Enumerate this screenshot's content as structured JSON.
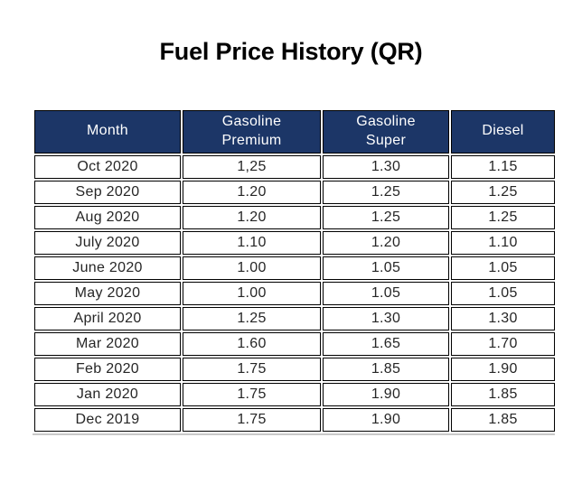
{
  "page": {
    "title": "Fuel Price History (QR)"
  },
  "colors": {
    "header_bg": "#1c3667",
    "header_text": "#ffffff",
    "cell_border": "#000000",
    "cell_text": "#262626",
    "title_text": "#000000",
    "page_bg": "#ffffff"
  },
  "table": {
    "columns": [
      {
        "key": "month",
        "label": "Month"
      },
      {
        "key": "premium",
        "label": "Gasoline\nPremium"
      },
      {
        "key": "super",
        "label": "Gasoline\nSuper"
      },
      {
        "key": "diesel",
        "label": "Diesel"
      }
    ],
    "rows": [
      {
        "month": "Oct 2020",
        "premium": "1,25",
        "super": "1.30",
        "diesel": "1.15"
      },
      {
        "month": "Sep 2020",
        "premium": "1.20",
        "super": "1.25",
        "diesel": "1.25"
      },
      {
        "month": "Aug 2020",
        "premium": "1.20",
        "super": "1.25",
        "diesel": "1.25"
      },
      {
        "month": "July 2020",
        "premium": "1.10",
        "super": "1.20",
        "diesel": "1.10"
      },
      {
        "month": "June 2020",
        "premium": "1.00",
        "super": "1.05",
        "diesel": "1.05"
      },
      {
        "month": "May 2020",
        "premium": "1.00",
        "super": "1.05",
        "diesel": "1.05"
      },
      {
        "month": "April 2020",
        "premium": "1.25",
        "super": "1.30",
        "diesel": "1.30"
      },
      {
        "month": "Mar 2020",
        "premium": "1.60",
        "super": "1.65",
        "diesel": "1.70"
      },
      {
        "month": "Feb 2020",
        "premium": "1.75",
        "super": "1.85",
        "diesel": "1.90"
      },
      {
        "month": "Jan 2020",
        "premium": "1.75",
        "super": "1.90",
        "diesel": "1.85"
      },
      {
        "month": "Dec 2019",
        "premium": "1.75",
        "super": "1.90",
        "diesel": "1.85"
      }
    ]
  }
}
